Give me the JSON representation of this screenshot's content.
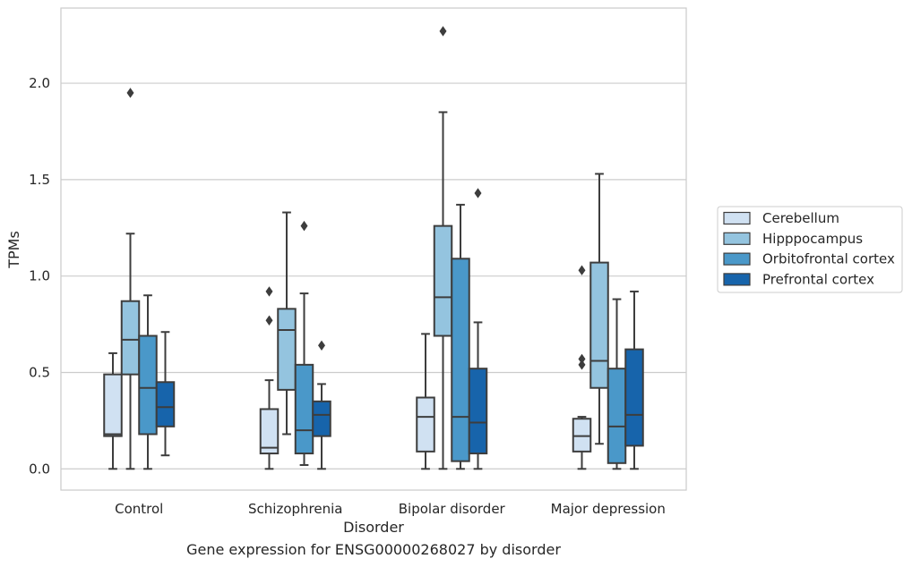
{
  "caption": "Gene expression for ENSG00000268027 by disorder",
  "chart_data": {
    "type": "box",
    "title": "",
    "xlabel": "Disorder",
    "ylabel": "TPMs",
    "ylim": [
      -0.11,
      2.39
    ],
    "yticks": [
      0.0,
      0.5,
      1.0,
      1.5,
      2.0
    ],
    "ytick_labels": [
      "0.0",
      "0.5",
      "1.0",
      "1.5",
      "2.0"
    ],
    "grid": "horizontal",
    "legend_position": "right",
    "categories": [
      "Control",
      "Schizophrenia",
      "Bipolar disorder",
      "Major depression"
    ],
    "series": [
      {
        "name": "Cerebellum",
        "color": "#d0e1f2",
        "boxes": [
          {
            "whislo": 0.0,
            "q1": 0.17,
            "med": 0.18,
            "q3": 0.49,
            "whishi": 0.6,
            "fliers": []
          },
          {
            "whislo": 0.0,
            "q1": 0.08,
            "med": 0.11,
            "q3": 0.31,
            "whishi": 0.46,
            "fliers": [
              0.77,
              0.92
            ]
          },
          {
            "whislo": 0.0,
            "q1": 0.09,
            "med": 0.27,
            "q3": 0.37,
            "whishi": 0.7,
            "fliers": []
          },
          {
            "whislo": 0.0,
            "q1": 0.09,
            "med": 0.17,
            "q3": 0.26,
            "whishi": 0.27,
            "fliers": [
              0.54,
              0.57,
              1.03
            ]
          }
        ]
      },
      {
        "name": "Hipppocampus",
        "color": "#94c4df",
        "boxes": [
          {
            "whislo": 0.0,
            "q1": 0.49,
            "med": 0.67,
            "q3": 0.87,
            "whishi": 1.22,
            "fliers": [
              1.95
            ]
          },
          {
            "whislo": 0.18,
            "q1": 0.41,
            "med": 0.72,
            "q3": 0.83,
            "whishi": 1.33,
            "fliers": []
          },
          {
            "whislo": 0.0,
            "q1": 0.69,
            "med": 0.89,
            "q3": 1.26,
            "whishi": 1.85,
            "fliers": [
              2.27
            ]
          },
          {
            "whislo": 0.13,
            "q1": 0.42,
            "med": 0.56,
            "q3": 1.07,
            "whishi": 1.53,
            "fliers": []
          }
        ]
      },
      {
        "name": "Orbitofrontal cortex",
        "color": "#4a98c9",
        "boxes": [
          {
            "whislo": 0.0,
            "q1": 0.18,
            "med": 0.42,
            "q3": 0.69,
            "whishi": 0.9,
            "fliers": []
          },
          {
            "whislo": 0.02,
            "q1": 0.08,
            "med": 0.2,
            "q3": 0.54,
            "whishi": 0.91,
            "fliers": [
              1.26
            ]
          },
          {
            "whislo": 0.0,
            "q1": 0.04,
            "med": 0.27,
            "q3": 1.09,
            "whishi": 1.37,
            "fliers": []
          },
          {
            "whislo": 0.0,
            "q1": 0.03,
            "med": 0.22,
            "q3": 0.52,
            "whishi": 0.88,
            "fliers": []
          }
        ]
      },
      {
        "name": "Prefrontal cortex",
        "color": "#1764ab",
        "boxes": [
          {
            "whislo": 0.07,
            "q1": 0.22,
            "med": 0.32,
            "q3": 0.45,
            "whishi": 0.71,
            "fliers": []
          },
          {
            "whislo": 0.0,
            "q1": 0.17,
            "med": 0.28,
            "q3": 0.35,
            "whishi": 0.44,
            "fliers": [
              0.64
            ]
          },
          {
            "whislo": 0.0,
            "q1": 0.08,
            "med": 0.24,
            "q3": 0.52,
            "whishi": 0.76,
            "fliers": [
              1.43
            ]
          },
          {
            "whislo": 0.0,
            "q1": 0.12,
            "med": 0.28,
            "q3": 0.62,
            "whishi": 0.92,
            "fliers": []
          }
        ]
      }
    ]
  }
}
